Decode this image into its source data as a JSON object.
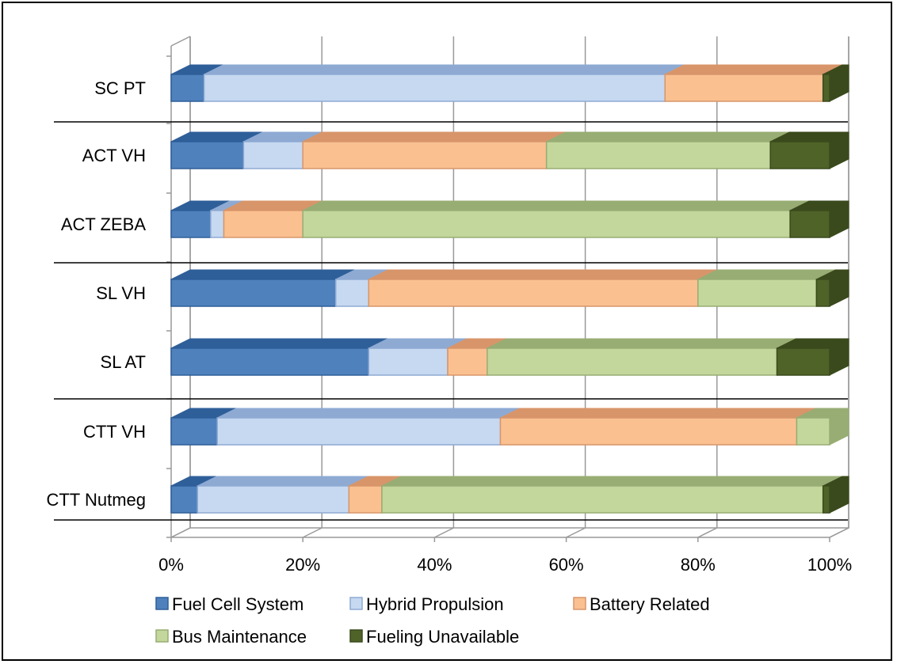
{
  "chart_data": {
    "type": "bar",
    "orientation": "horizontal",
    "stacked": "percent",
    "categories": [
      "SC PT",
      "ACT VH",
      "ACT ZEBA",
      "SL VH",
      "SL AT",
      "CTT VH",
      "CTT Nutmeg"
    ],
    "series": [
      {
        "name": "Fuel Cell System",
        "color": "#4f81bd",
        "top_color": "#2f5f99",
        "values": [
          5,
          11,
          6,
          25,
          30,
          7,
          4
        ]
      },
      {
        "name": "Hybrid Propulsion",
        "color": "#c6d9f1",
        "top_color": "#8eaad3",
        "values": [
          70,
          9,
          2,
          5,
          12,
          43,
          23
        ]
      },
      {
        "name": "Battery Related",
        "color": "#fac090",
        "top_color": "#d8956a",
        "values": [
          24,
          37,
          12,
          50,
          6,
          45,
          5
        ]
      },
      {
        "name": "Bus Maintenance",
        "color": "#c3d69b",
        "top_color": "#98ad74",
        "values": [
          0,
          34,
          74,
          18,
          44,
          5,
          67
        ]
      },
      {
        "name": "Fueling Unavailable",
        "color": "#4f6228",
        "top_color": "#3a4a1c",
        "values": [
          1,
          9,
          6,
          2,
          8,
          0,
          1
        ]
      }
    ],
    "x_ticks": [
      "0%",
      "20%",
      "40%",
      "60%",
      "80%",
      "100%"
    ],
    "xlim": [
      0,
      100
    ],
    "grid": true,
    "legend": "bottom",
    "title": "",
    "xlabel": "",
    "ylabel": ""
  }
}
